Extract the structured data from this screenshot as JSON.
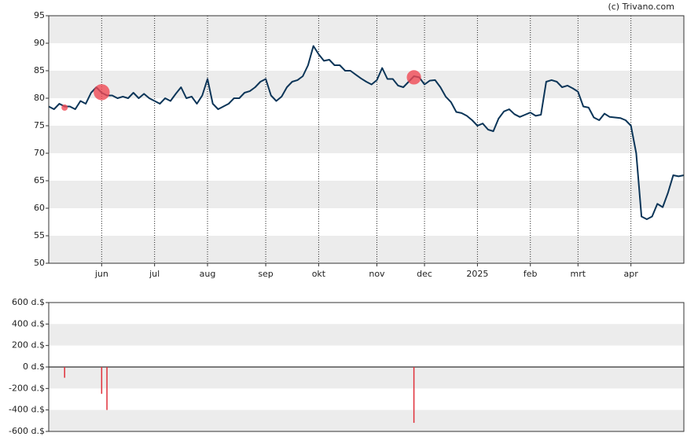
{
  "chart_data": [
    {
      "type": "line",
      "source": "(c) Trivano.com",
      "categories": [
        null,
        null,
        null,
        null,
        null,
        null,
        null,
        null,
        null,
        null,
        "jun",
        null,
        null,
        null,
        null,
        null,
        null,
        null,
        null,
        null,
        "jul",
        null,
        null,
        null,
        null,
        null,
        null,
        null,
        null,
        null,
        "aug",
        null,
        null,
        null,
        null,
        null,
        null,
        null,
        null,
        null,
        null,
        "sep",
        null,
        null,
        null,
        null,
        null,
        null,
        null,
        null,
        null,
        "okt",
        null,
        null,
        null,
        null,
        null,
        null,
        null,
        null,
        null,
        null,
        "nov",
        null,
        null,
        null,
        null,
        null,
        null,
        null,
        null,
        "dec",
        null,
        null,
        null,
        null,
        null,
        null,
        null,
        null,
        null,
        "2025",
        null,
        null,
        null,
        null,
        null,
        null,
        null,
        null,
        null,
        "feb",
        null,
        null,
        null,
        null,
        null,
        null,
        null,
        null,
        "mrt",
        null,
        null,
        null,
        null,
        null,
        null,
        null,
        null,
        null,
        "apr",
        null,
        null,
        null,
        null,
        null,
        null,
        null,
        null,
        null,
        null
      ],
      "series": [
        {
          "color": "#0b3558",
          "values": [
            78.5,
            78,
            79,
            78.5,
            78.5,
            78,
            79.5,
            79,
            81,
            82,
            81,
            80.5,
            80.5,
            80,
            80.3,
            80,
            81,
            80,
            80.8,
            80,
            79.5,
            79,
            80,
            79.5,
            80.8,
            82,
            80,
            80.3,
            79,
            80.5,
            83.5,
            79,
            78,
            78.5,
            79,
            80,
            80,
            81,
            81.3,
            82,
            83,
            83.5,
            80.5,
            79.5,
            80.3,
            82,
            83,
            83.3,
            84,
            86,
            89.5,
            88,
            86.8,
            87,
            86,
            86,
            85,
            85,
            84.3,
            83.6,
            83,
            82.5,
            83.3,
            85.5,
            83.5,
            83.5,
            82.3,
            82,
            83,
            84,
            83.8,
            82.5,
            83.2,
            83.3,
            82,
            80.3,
            79.3,
            77.5,
            77.3,
            76.8,
            76,
            75,
            75.4,
            74.3,
            74,
            76.3,
            77.6,
            78,
            77.1,
            76.6,
            77,
            77.4,
            76.8,
            77,
            83,
            83.3,
            83,
            82,
            82.3,
            81.8,
            81.2,
            78.5,
            78.3,
            76.5,
            76,
            77.2,
            76.6,
            76.5,
            76.4,
            76,
            75,
            70,
            58.5,
            58,
            58.5,
            60.8,
            60.2,
            62.8,
            66,
            65.8,
            66
          ]
        },
        {
          "color": "#f04a55",
          "marks": "circle",
          "values": [
            null,
            null,
            null,
            78.3,
            null,
            null,
            null,
            null,
            null,
            null,
            81.1,
            null,
            null,
            null,
            null,
            null,
            null,
            null,
            null,
            null,
            null,
            null,
            null,
            null,
            null,
            null,
            null,
            null,
            null,
            null,
            null,
            null,
            null,
            null,
            null,
            null,
            null,
            null,
            null,
            null,
            null,
            null,
            null,
            null,
            null,
            null,
            null,
            null,
            null,
            null,
            null,
            null,
            null,
            null,
            null,
            null,
            null,
            null,
            null,
            null,
            null,
            null,
            null,
            null,
            null,
            null,
            null,
            null,
            null,
            83.8,
            null,
            null,
            null,
            null,
            null,
            null,
            null,
            null,
            null,
            null,
            null,
            null,
            null,
            null,
            null,
            null,
            null,
            null,
            null,
            null,
            null,
            null,
            null,
            null,
            null,
            null,
            null,
            null,
            null,
            null,
            null,
            null,
            null,
            null,
            null,
            null,
            null,
            null,
            null,
            null,
            null,
            null,
            null,
            null,
            null,
            null,
            null,
            null,
            null,
            null,
            null
          ]
        }
      ],
      "ylim": [
        50,
        95
      ],
      "yticks": [
        50,
        55,
        60,
        65,
        70,
        75,
        80,
        85,
        90,
        95
      ],
      "grid": true
    },
    {
      "type": "bar",
      "series": [
        {
          "color": "#e0303a",
          "values": [
            null,
            null,
            null,
            -100,
            null,
            null,
            null,
            null,
            null,
            null,
            -250,
            -400,
            null,
            null,
            null,
            null,
            null,
            null,
            null,
            null,
            null,
            null,
            null,
            null,
            null,
            null,
            null,
            null,
            null,
            null,
            null,
            null,
            null,
            null,
            null,
            null,
            null,
            null,
            null,
            null,
            null,
            null,
            null,
            null,
            null,
            null,
            null,
            null,
            null,
            null,
            null,
            null,
            null,
            null,
            null,
            null,
            null,
            null,
            null,
            null,
            null,
            null,
            null,
            null,
            null,
            null,
            null,
            null,
            null,
            -520,
            null,
            null,
            null,
            null,
            null,
            null,
            null,
            null,
            null,
            null,
            null,
            null,
            null,
            null,
            null,
            null,
            null,
            null,
            null,
            null,
            null,
            null,
            null,
            null,
            null,
            null,
            null,
            null,
            null,
            null,
            null,
            null,
            null,
            null,
            null,
            null,
            null,
            null,
            null,
            null,
            null,
            null,
            null,
            null,
            null,
            null,
            null,
            null,
            null,
            null,
            null
          ]
        }
      ],
      "ylim": [
        -600,
        600
      ],
      "yticks": [
        {
          "value": -600,
          "label": "-600 d.$"
        },
        {
          "value": -400,
          "label": "-400 d.$"
        },
        {
          "value": -200,
          "label": "-200 d.$"
        },
        {
          "value": 0,
          "label": "0 d.$"
        },
        {
          "value": 200,
          "label": "200 d.$"
        },
        {
          "value": 400,
          "label": "400 d.$"
        },
        {
          "value": 600,
          "label": "600 d.$"
        }
      ],
      "grid": true
    }
  ]
}
